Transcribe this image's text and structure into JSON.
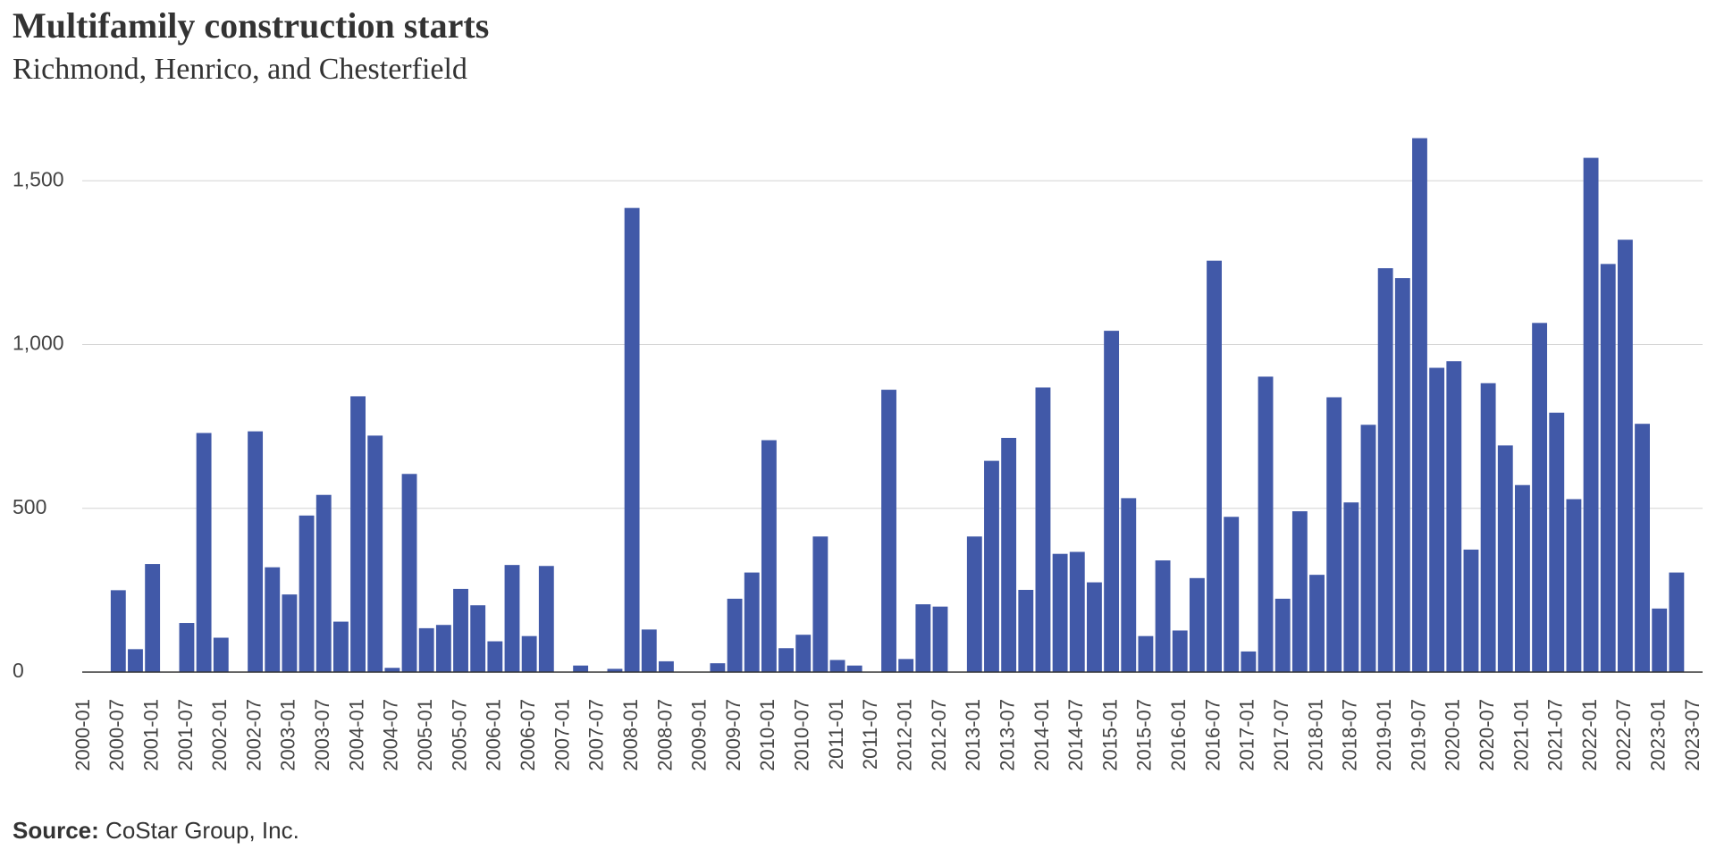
{
  "chart_data": {
    "type": "bar",
    "title": "Multifamily construction starts",
    "subtitle": "Richmond, Henrico, and Chesterfield",
    "source_label": "Source:",
    "source_text": "CoStar Group, Inc.",
    "color": "#4159a8",
    "grid": true,
    "ylim": [
      0,
      1700
    ],
    "yticks": [
      0,
      500,
      {
        "value": 1000,
        "label": "1,000"
      },
      {
        "value": 1500,
        "label": "1,500"
      }
    ],
    "categories": [
      "2000-01",
      null,
      "2000-07",
      null,
      "2001-01",
      null,
      "2001-07",
      null,
      "2002-01",
      null,
      "2002-07",
      null,
      "2003-01",
      null,
      "2003-07",
      null,
      "2004-01",
      null,
      "2004-07",
      null,
      "2005-01",
      null,
      "2005-07",
      null,
      "2006-01",
      null,
      "2006-07",
      null,
      "2007-01",
      null,
      "2007-07",
      null,
      "2008-01",
      null,
      "2008-07",
      null,
      "2009-01",
      null,
      "2009-07",
      null,
      "2010-01",
      null,
      "2010-07",
      null,
      "2011-01",
      null,
      "2011-07",
      null,
      "2012-01",
      null,
      "2012-07",
      null,
      "2013-01",
      null,
      "2013-07",
      null,
      "2014-01",
      null,
      "2014-07",
      null,
      "2015-01",
      null,
      "2015-07",
      null,
      "2016-01",
      null,
      "2016-07",
      null,
      "2017-01",
      null,
      "2017-07",
      null,
      "2018-01",
      null,
      "2018-07",
      null,
      "2019-01",
      null,
      "2019-07",
      null,
      "2020-01",
      null,
      "2020-07",
      null,
      "2021-01",
      null,
      "2021-07",
      null,
      "2022-01",
      null,
      "2022-07",
      null,
      "2023-01",
      null,
      "2023-07"
    ],
    "values": [
      0,
      0,
      250,
      70,
      330,
      0,
      150,
      730,
      105,
      0,
      735,
      320,
      237,
      478,
      541,
      154,
      842,
      722,
      13,
      605,
      134,
      144,
      254,
      204,
      94,
      327,
      110,
      324,
      0,
      20,
      0,
      10,
      1417,
      130,
      33,
      0,
      0,
      27,
      224,
      304,
      708,
      73,
      114,
      414,
      37,
      20,
      0,
      862,
      40,
      207,
      200,
      0,
      414,
      645,
      715,
      251,
      869,
      361,
      367,
      274,
      1042,
      531,
      110,
      341,
      127,
      287,
      1256,
      474,
      63,
      902,
      224,
      491,
      297,
      839,
      518,
      755,
      1233,
      1203,
      1630,
      929,
      949,
      374,
      882,
      692,
      571,
      1066,
      792,
      528,
      1570,
      1246,
      1320,
      758,
      194,
      304,
      null
    ]
  }
}
